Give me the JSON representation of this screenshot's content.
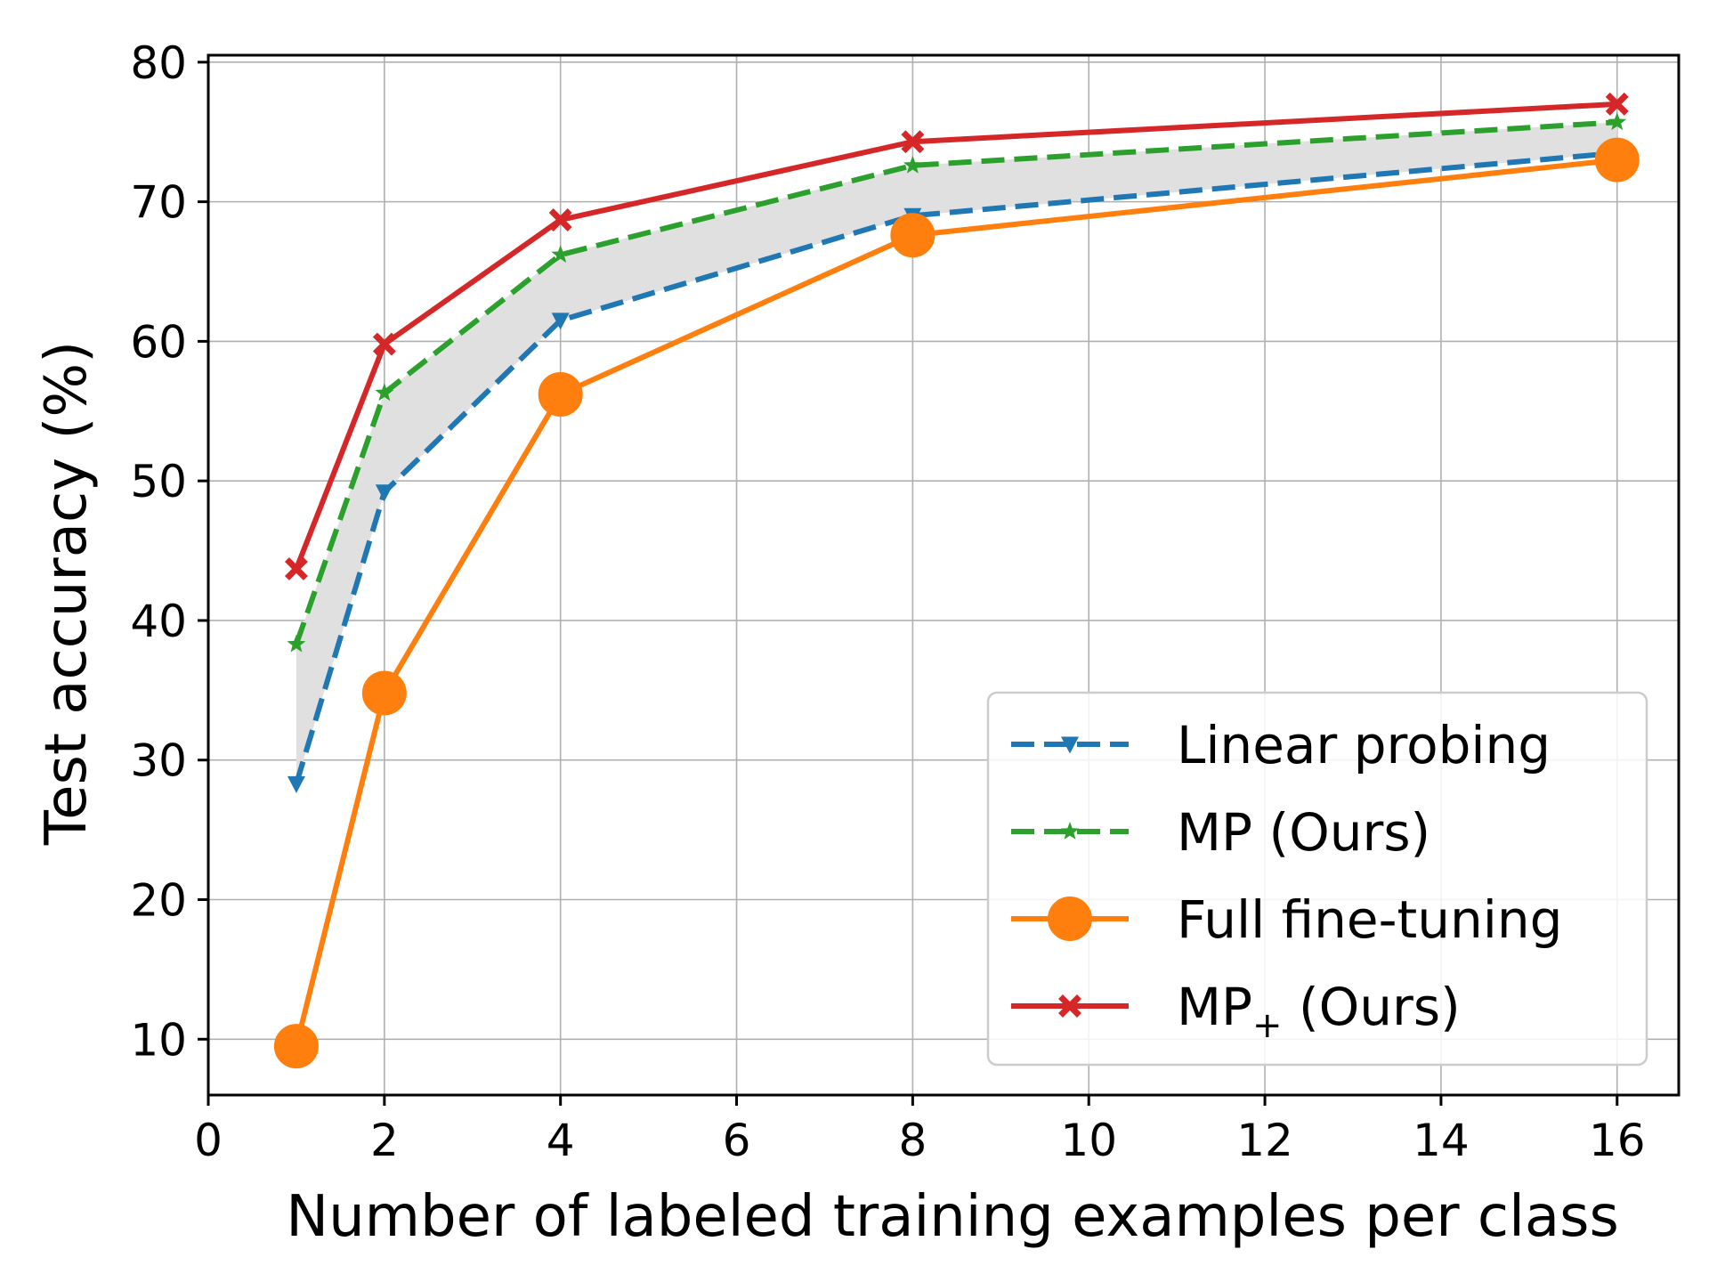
{
  "chart_data": {
    "type": "line",
    "xlabel": "Number of labeled training examples per class",
    "ylabel": "Test accuracy (%)",
    "xlim": [
      0,
      16.7
    ],
    "ylim": [
      6,
      80.5
    ],
    "xticks": [
      0,
      2,
      4,
      6,
      8,
      10,
      12,
      14,
      16
    ],
    "yticks": [
      10,
      20,
      30,
      40,
      50,
      60,
      70,
      80
    ],
    "grid": true,
    "legend_position": "bottom-right",
    "shaded_band": {
      "between": [
        "Linear probing",
        "MP (Ours)"
      ],
      "color": "#e0e0e0"
    },
    "x": [
      1,
      2,
      4,
      8,
      16
    ],
    "series": [
      {
        "name": "Linear probing",
        "values": [
          28.3,
          49.2,
          61.5,
          69.0,
          73.5
        ],
        "color": "#1f77b4",
        "line": "dashed",
        "marker": "triangle-down"
      },
      {
        "name": "MP (Ours)",
        "values": [
          38.3,
          56.3,
          66.2,
          72.6,
          75.7
        ],
        "color": "#2ca02c",
        "line": "dashed",
        "marker": "star"
      },
      {
        "name": "Full fine-tuning",
        "values": [
          9.5,
          34.8,
          56.2,
          67.6,
          73.0
        ],
        "color": "#ff7f0e",
        "line": "solid",
        "marker": "circle"
      },
      {
        "name": "MP",
        "name_subscript": "+",
        "name_suffix": " (Ours)",
        "values": [
          43.7,
          59.8,
          68.7,
          74.3,
          77.0
        ],
        "color": "#d62728",
        "line": "solid",
        "marker": "x"
      }
    ]
  }
}
